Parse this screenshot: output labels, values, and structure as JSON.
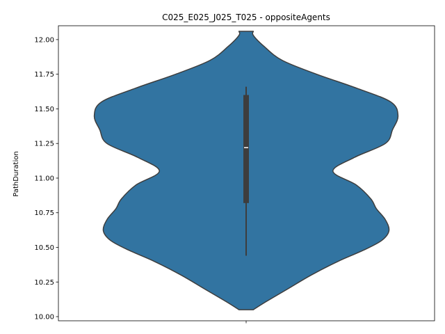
{
  "chart_data": {
    "type": "violin",
    "title": "C025_E025_J025_T025 - oppositeAgents",
    "xlabel": "",
    "ylabel": "PathDuration",
    "ylim": [
      9.97,
      12.1
    ],
    "yticks": [
      10.0,
      10.25,
      10.5,
      10.75,
      11.0,
      11.25,
      11.5,
      11.75,
      12.0
    ],
    "ytick_labels": [
      "10.00",
      "10.25",
      "10.50",
      "10.75",
      "11.00",
      "11.25",
      "11.50",
      "11.75",
      "12.00"
    ],
    "grid": false,
    "fill_color": "#3274a1",
    "edge_color": "#3d3d3d",
    "violin": {
      "min": 10.05,
      "max": 12.06,
      "density_profile": [
        [
          10.05,
          0.04
        ],
        [
          10.1,
          0.1
        ],
        [
          10.2,
          0.23
        ],
        [
          10.3,
          0.36
        ],
        [
          10.4,
          0.51
        ],
        [
          10.48,
          0.65
        ],
        [
          10.55,
          0.75
        ],
        [
          10.62,
          0.79
        ],
        [
          10.7,
          0.77
        ],
        [
          10.78,
          0.72
        ],
        [
          10.85,
          0.69
        ],
        [
          10.95,
          0.61
        ],
        [
          11.05,
          0.48
        ],
        [
          11.15,
          0.6
        ],
        [
          11.25,
          0.77
        ],
        [
          11.35,
          0.81
        ],
        [
          11.45,
          0.84
        ],
        [
          11.55,
          0.8
        ],
        [
          11.65,
          0.61
        ],
        [
          11.75,
          0.39
        ],
        [
          11.85,
          0.2
        ],
        [
          11.95,
          0.1
        ],
        [
          12.03,
          0.04
        ],
        [
          12.06,
          0.04
        ]
      ]
    },
    "box": {
      "q1": 10.82,
      "median": 11.22,
      "q3": 11.6,
      "whisker_low": 10.44,
      "whisker_high": 11.66
    }
  }
}
